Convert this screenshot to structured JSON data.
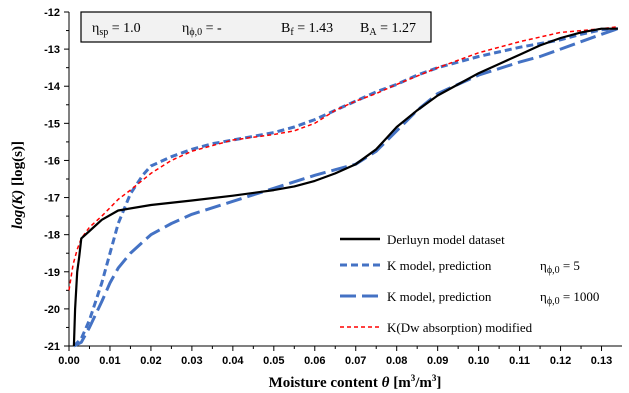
{
  "chart_data": {
    "type": "line",
    "title": "",
    "xlabel": {
      "main": "Moisture content ",
      "italic": "θ",
      "unit": " [m",
      "sup1": "3",
      "mid": "/m",
      "sup2": "3",
      "end": "]"
    },
    "ylabel": {
      "italic": "log(K)",
      "unit": "  [log(s)]"
    },
    "xlim": [
      0,
      0.135
    ],
    "ylim": [
      -21,
      -12
    ],
    "xticks": [
      "0.00",
      "0.01",
      "0.02",
      "0.03",
      "0.04",
      "0.05",
      "0.06",
      "0.07",
      "0.08",
      "0.09",
      "0.10",
      "0.11",
      "0.12",
      "0.13"
    ],
    "yticks": [
      "-12",
      "-13",
      "-14",
      "-15",
      "-16",
      "-17",
      "-18",
      "-19",
      "-20",
      "-21"
    ],
    "grid": false,
    "legend_position": "bottom-right",
    "params": {
      "sp_label": "η",
      "sp_sub": "sp",
      "sp_value": " = 1.0",
      "phi_label": "η",
      "phi_sub": "ϕ,0",
      "phi_value": " = -",
      "bf_label": "B",
      "bf_sub": "f",
      "bf_value": " = 1.43",
      "ba_label": "B",
      "ba_sub": "A",
      "ba_value": " = 1.27"
    },
    "series": [
      {
        "name": "Derluyn model dataset",
        "color": "#000000",
        "style": "solid",
        "x": [
          0.0012,
          0.0015,
          0.002,
          0.0025,
          0.003,
          0.005,
          0.008,
          0.012,
          0.02,
          0.03,
          0.04,
          0.05,
          0.055,
          0.06,
          0.065,
          0.07,
          0.075,
          0.08,
          0.085,
          0.09,
          0.095,
          0.1,
          0.105,
          0.11,
          0.115,
          0.12,
          0.125,
          0.13,
          0.134
        ],
        "y": [
          -21.0,
          -20.0,
          -19.0,
          -18.6,
          -18.1,
          -17.9,
          -17.6,
          -17.35,
          -17.2,
          -17.08,
          -16.95,
          -16.8,
          -16.7,
          -16.55,
          -16.35,
          -16.1,
          -15.7,
          -15.1,
          -14.65,
          -14.25,
          -13.95,
          -13.65,
          -13.4,
          -13.15,
          -12.9,
          -12.7,
          -12.55,
          -12.45,
          -12.45
        ]
      },
      {
        "name": "K model, prediction",
        "annotation_label": "η",
        "annotation_sub": "ϕ,0",
        "annotation_value": " = 5",
        "color": "#4472c4",
        "style": "short-dash",
        "x": [
          0.0012,
          0.003,
          0.005,
          0.008,
          0.01,
          0.012,
          0.015,
          0.018,
          0.02,
          0.025,
          0.03,
          0.035,
          0.04,
          0.05,
          0.055,
          0.06,
          0.065,
          0.07,
          0.075,
          0.08,
          0.085,
          0.09,
          0.1,
          0.11,
          0.12,
          0.125,
          0.13,
          0.134
        ],
        "y": [
          -21.0,
          -20.8,
          -20.3,
          -19.3,
          -18.5,
          -17.7,
          -16.9,
          -16.4,
          -16.15,
          -15.9,
          -15.7,
          -15.55,
          -15.45,
          -15.25,
          -15.1,
          -14.9,
          -14.65,
          -14.4,
          -14.15,
          -13.95,
          -13.7,
          -13.5,
          -13.2,
          -12.95,
          -12.75,
          -12.6,
          -12.48,
          -12.45
        ]
      },
      {
        "name": "K model, prediction",
        "annotation_label": "η",
        "annotation_sub": "ϕ,0",
        "annotation_value": " = 1000",
        "color": "#4472c4",
        "style": "long-dash",
        "x": [
          0.0012,
          0.003,
          0.005,
          0.008,
          0.01,
          0.012,
          0.015,
          0.02,
          0.025,
          0.03,
          0.04,
          0.05,
          0.06,
          0.065,
          0.07,
          0.075,
          0.08,
          0.085,
          0.09,
          0.1,
          0.11,
          0.115,
          0.12,
          0.125,
          0.13,
          0.134
        ],
        "y": [
          -21.0,
          -20.9,
          -20.5,
          -19.8,
          -19.3,
          -18.9,
          -18.5,
          -18.0,
          -17.7,
          -17.45,
          -17.1,
          -16.75,
          -16.4,
          -16.25,
          -16.1,
          -15.75,
          -15.2,
          -14.65,
          -14.2,
          -13.7,
          -13.35,
          -13.2,
          -13.0,
          -12.8,
          -12.6,
          -12.45
        ]
      },
      {
        "name": "K(Dw absorption) modified",
        "color": "#ff0000",
        "style": "fine-dash",
        "x": [
          0.0,
          0.001,
          0.002,
          0.003,
          0.005,
          0.008,
          0.012,
          0.015,
          0.02,
          0.025,
          0.03,
          0.04,
          0.05,
          0.055,
          0.06,
          0.065,
          0.07,
          0.075,
          0.08,
          0.09,
          0.1,
          0.11,
          0.12,
          0.125,
          0.13,
          0.134
        ],
        "y": [
          -19.5,
          -18.8,
          -18.4,
          -18.1,
          -17.8,
          -17.5,
          -17.05,
          -16.8,
          -16.35,
          -16.0,
          -15.75,
          -15.45,
          -15.3,
          -15.2,
          -15.0,
          -14.65,
          -14.4,
          -14.2,
          -13.95,
          -13.5,
          -13.1,
          -12.8,
          -12.55,
          -12.5,
          -12.45,
          -12.4
        ]
      }
    ]
  }
}
